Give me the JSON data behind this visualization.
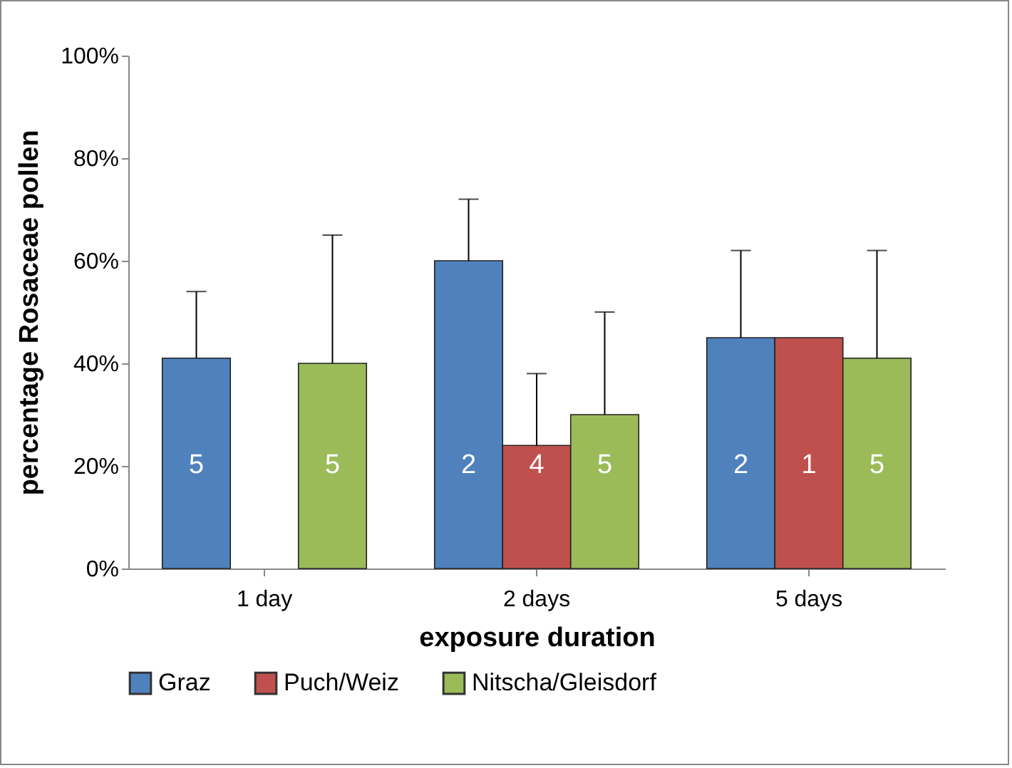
{
  "chart_data": {
    "type": "bar",
    "xlabel": "exposure duration",
    "ylabel": "percentage Rosaceae pollen",
    "categories": [
      "1 day",
      "2 days",
      "5 days"
    ],
    "series": [
      {
        "name": "Graz",
        "color": "#4f81bd",
        "values": [
          41,
          60,
          45
        ],
        "errors": [
          [
            41,
            54
          ],
          [
            60,
            72
          ],
          [
            45,
            62
          ]
        ]
      },
      {
        "name": "Puch/Weiz",
        "color": "#c0504d",
        "values": [
          null,
          24,
          45
        ],
        "errors": [
          null,
          [
            24,
            38
          ],
          null
        ]
      },
      {
        "name": "Nitscha/Gleisdorf",
        "color": "#9bbb59",
        "values": [
          40,
          30,
          41
        ],
        "errors": [
          [
            40,
            65
          ],
          [
            30,
            50
          ],
          [
            41,
            62
          ]
        ]
      }
    ],
    "annotations": [
      "5",
      "5",
      "2",
      "4",
      "5",
      "2",
      "1",
      "5"
    ],
    "ylim": [
      0,
      100
    ],
    "yticks": [
      {
        "value": 0,
        "label": "0%"
      },
      {
        "value": 20,
        "label": "20%"
      },
      {
        "value": 40,
        "label": "40%"
      },
      {
        "value": 60,
        "label": "60%"
      },
      {
        "value": 80,
        "label": "80%"
      },
      {
        "value": 100,
        "label": "100%"
      }
    ],
    "grid": false,
    "legend": "bottom"
  }
}
